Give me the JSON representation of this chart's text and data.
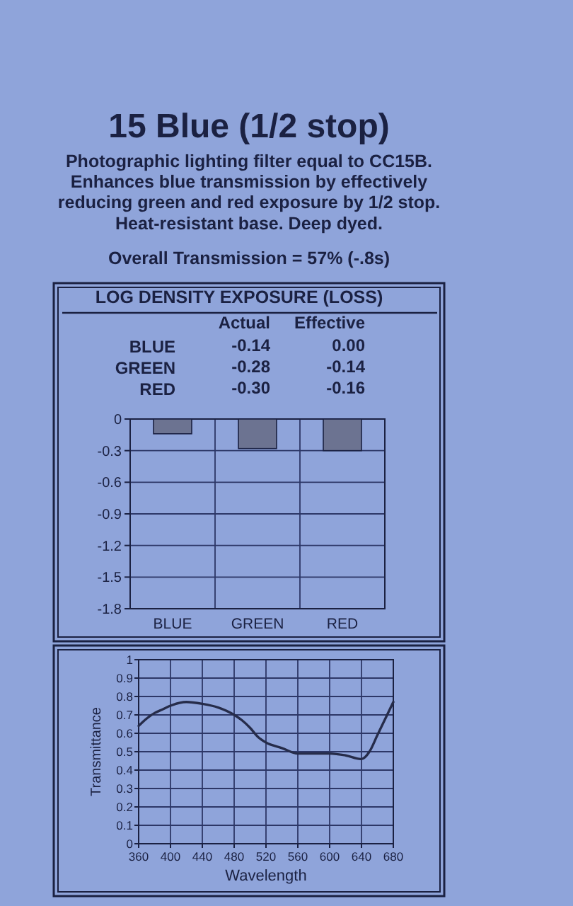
{
  "chart_data": [
    {
      "type": "other",
      "title": "15 Blue (1/2 stop)",
      "annotations": [
        "Photographic lighting filter equal to CC15B.",
        "Enhances blue transmission by effectively",
        "reducing green and red exposure by 1/2 stop.",
        "Heat-resistant base. Deep dyed.",
        "Overall Transmission = 57% (-.8s)"
      ]
    },
    {
      "type": "other",
      "title": "LOG DENSITY EXPOSURE (LOSS)",
      "categories": [
        "BLUE",
        "GREEN",
        "RED"
      ],
      "series": [
        {
          "name": "Actual",
          "values": [
            -0.14,
            -0.28,
            -0.3
          ],
          "value_labels": [
            "-0.14",
            "-0.28",
            "-0.30"
          ]
        },
        {
          "name": "Effective",
          "values": [
            0,
            -0.14,
            -0.16
          ],
          "value_labels": [
            "0.00",
            "-0.14",
            "-0.16"
          ]
        }
      ]
    },
    {
      "type": "bar",
      "categories": [
        "BLUE",
        "GREEN",
        "RED"
      ],
      "values": [
        -0.14,
        -0.28,
        -0.3
      ],
      "color": "#6c7391",
      "ylim": [
        -1.8,
        0
      ],
      "yticks": [
        0,
        -0.3,
        -0.6,
        -0.9,
        -1.2,
        -1.5,
        -1.8
      ],
      "grid": true
    },
    {
      "type": "line",
      "xlabel": "Wavelength",
      "ylabel": "Transmittance",
      "x": [
        360,
        370,
        380,
        390,
        400,
        420,
        440,
        460,
        480,
        490,
        500,
        510,
        520,
        540,
        560,
        580,
        600,
        620,
        640,
        650,
        660,
        670,
        680
      ],
      "values": [
        0.64,
        0.68,
        0.71,
        0.73,
        0.75,
        0.77,
        0.76,
        0.74,
        0.7,
        0.67,
        0.63,
        0.58,
        0.55,
        0.52,
        0.49,
        0.49,
        0.49,
        0.48,
        0.46,
        0.5,
        0.59,
        0.68,
        0.77
      ],
      "color": "#262c4a",
      "xlim": [
        360,
        680
      ],
      "xticks": [
        360,
        400,
        440,
        480,
        520,
        560,
        600,
        640,
        680
      ],
      "ylim": [
        0,
        1
      ],
      "yticks": [
        0,
        0.1,
        0.2,
        0.3,
        0.4,
        0.5,
        0.6,
        0.7,
        0.8,
        0.9,
        1
      ],
      "grid": true
    }
  ]
}
